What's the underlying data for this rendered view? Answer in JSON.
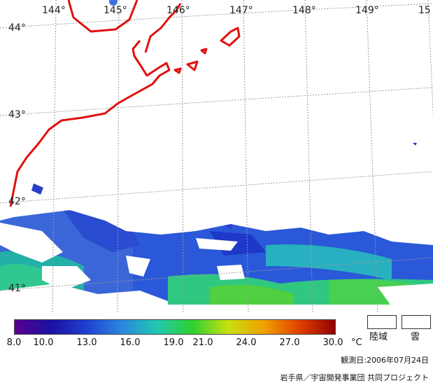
{
  "map": {
    "lon_labels": [
      "144°",
      "145°",
      "146°",
      "147°",
      "148°",
      "149°",
      "15"
    ],
    "lat_labels": [
      "44°",
      "43°",
      "42°",
      "41°"
    ],
    "coast_color": "#e01010",
    "grid_color": "#9a9a9a"
  },
  "legend": {
    "ticks": [
      "8.0",
      "10.0",
      "13.0",
      "16.0",
      "19.0",
      "21.0",
      "24.0",
      "27.0",
      "30.0"
    ],
    "unit": "°C",
    "land_label": "陸域",
    "cloud_label": "雲",
    "colors": [
      "#5a0090",
      "#1a10a0",
      "#1f3ed0",
      "#2a86e0",
      "#20c8b0",
      "#30d030",
      "#c8e010",
      "#f0a000",
      "#e04000",
      "#900000"
    ]
  },
  "footer": {
    "observation_date": "観測日:2006年07月24日",
    "credit": "岩手県／宇宙開発事業団 共同プロジェクト"
  }
}
